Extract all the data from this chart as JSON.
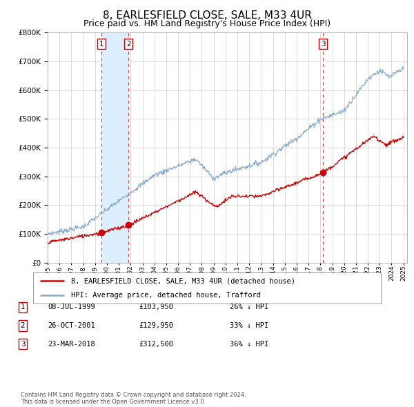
{
  "title": "8, EARLESFIELD CLOSE, SALE, M33 4UR",
  "subtitle": "Price paid vs. HM Land Registry's House Price Index (HPI)",
  "title_fontsize": 11,
  "subtitle_fontsize": 9,
  "red_line_label": "8, EARLESFIELD CLOSE, SALE, M33 4UR (detached house)",
  "blue_line_label": "HPI: Average price, detached house, Trafford",
  "transactions": [
    {
      "num": 1,
      "date": "08-JUL-1999",
      "price": "£103,950",
      "pct": "26% ↓ HPI",
      "year": 1999.53
    },
    {
      "num": 2,
      "date": "26-OCT-2001",
      "price": "£129,950",
      "pct": "33% ↓ HPI",
      "year": 2001.82
    },
    {
      "num": 3,
      "date": "23-MAR-2018",
      "price": "£312,500",
      "pct": "36% ↓ HPI",
      "year": 2018.22
    }
  ],
  "transaction_prices": [
    103950,
    129950,
    312500
  ],
  "vline_color": "#dd4444",
  "red_color": "#cc0000",
  "blue_color": "#88aacc",
  "shaded_region_color": "#ddeeff",
  "footer_text": "Contains HM Land Registry data © Crown copyright and database right 2024.\nThis data is licensed under the Open Government Licence v3.0.",
  "ylim": [
    0,
    800000
  ],
  "yticks": [
    0,
    100000,
    200000,
    300000,
    400000,
    500000,
    600000,
    700000,
    800000
  ],
  "background_color": "#ffffff",
  "grid_color": "#cccccc"
}
